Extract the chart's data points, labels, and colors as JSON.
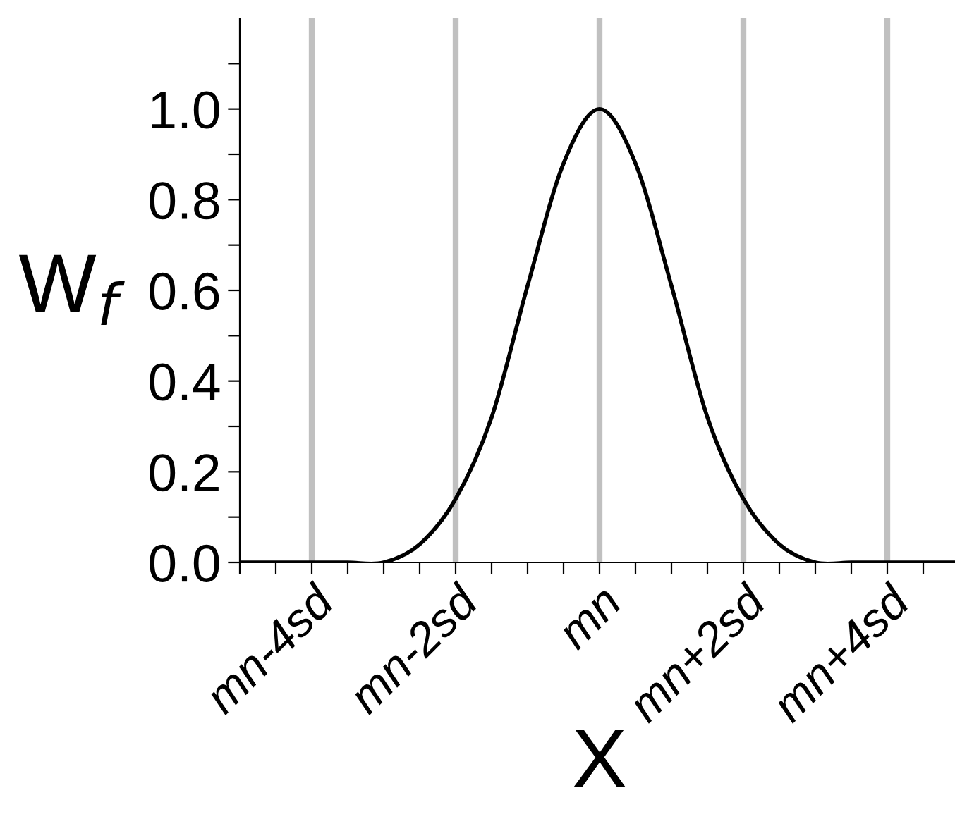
{
  "chart_data": {
    "type": "line",
    "xlabel": "X",
    "ylabel": "W$_{f}$",
    "categories": [
      null,
      null,
      "mn-4sd",
      null,
      null,
      null,
      "mn-2sd",
      null,
      null,
      null,
      "mn",
      null,
      null,
      null,
      "mn+2sd",
      null,
      null,
      null,
      "mn+4sd",
      null,
      null
    ],
    "series": [
      {
        "color": "#000000",
        "values": [
          0,
          0,
          0,
          0,
          0,
          0.04,
          0.14,
          0.32,
          0.61,
          0.88,
          1.0,
          0.88,
          0.61,
          0.32,
          0.14,
          0.04,
          0,
          0,
          0,
          0,
          0
        ]
      }
    ],
    "ylim": [
      0,
      1.2
    ],
    "yticks": [
      {
        "value": 0,
        "label": "0.0"
      },
      {
        "value": 0.1,
        "label": null
      },
      {
        "value": 0.2,
        "label": "0.2"
      },
      {
        "value": 0.3,
        "label": null
      },
      {
        "value": 0.4,
        "label": "0.4"
      },
      {
        "value": 0.5,
        "label": null
      },
      {
        "value": 0.6,
        "label": "0.6"
      },
      {
        "value": 0.7,
        "label": null
      },
      {
        "value": 0.8,
        "label": "0.8"
      },
      {
        "value": 0.9,
        "label": null
      },
      {
        "value": 1.0,
        "label": "1.0"
      },
      {
        "value": 1.1,
        "label": null
      }
    ],
    "ref_lines": [
      {
        "axis": "x",
        "value": "mn-4sd",
        "color": "#c0c0c0"
      },
      {
        "axis": "x",
        "value": "mn-2sd",
        "color": "#c0c0c0"
      },
      {
        "axis": "x",
        "value": "mn",
        "color": "#c0c0c0"
      },
      {
        "axis": "x",
        "value": "mn+2sd",
        "color": "#c0c0c0"
      },
      {
        "axis": "x",
        "value": "mn+4sd",
        "color": "#c0c0c0"
      }
    ],
    "grid": false,
    "legend": false,
    "marker": "none",
    "line_style": "solid"
  }
}
